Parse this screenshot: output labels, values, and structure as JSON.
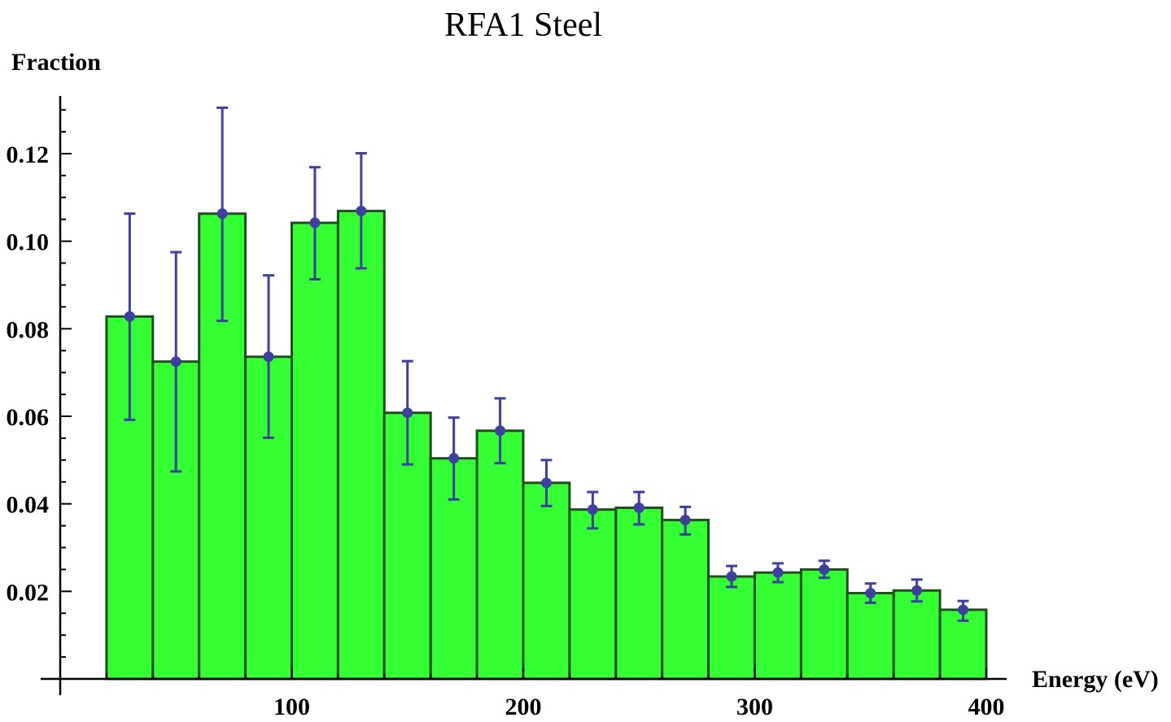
{
  "chart_data": {
    "type": "bar",
    "title": "RFA1 Steel",
    "xlabel": "Energy (eV)",
    "ylabel": "Fraction",
    "xlim": [
      0,
      400
    ],
    "ylim": [
      0,
      0.13
    ],
    "x_ticks": [
      "100",
      "200",
      "300",
      "400"
    ],
    "y_ticks": [
      "0.02",
      "0.04",
      "0.06",
      "0.08",
      "0.10",
      "0.12"
    ],
    "bin_width": 20,
    "bin_centers": [
      30,
      50,
      70,
      90,
      110,
      130,
      150,
      170,
      190,
      210,
      230,
      250,
      270,
      290,
      310,
      330,
      350,
      370,
      390
    ],
    "values": [
      0.0828,
      0.0725,
      0.1063,
      0.0736,
      0.1042,
      0.1069,
      0.0608,
      0.0504,
      0.0567,
      0.0448,
      0.0387,
      0.0391,
      0.0363,
      0.0234,
      0.0243,
      0.025,
      0.0196,
      0.0202,
      0.0158
    ],
    "error_low": [
      0.0592,
      0.0474,
      0.0818,
      0.0551,
      0.0913,
      0.0938,
      0.049,
      0.041,
      0.0493,
      0.0395,
      0.0344,
      0.0353,
      0.033,
      0.021,
      0.0221,
      0.0231,
      0.0174,
      0.0177,
      0.0133
    ],
    "error_high": [
      0.1063,
      0.0975,
      0.1305,
      0.0922,
      0.1169,
      0.1201,
      0.0726,
      0.0597,
      0.0641,
      0.05,
      0.0427,
      0.0427,
      0.0393,
      0.0258,
      0.0264,
      0.027,
      0.0218,
      0.0227,
      0.0178
    ],
    "grid": false,
    "colors": {
      "bar_fill": "#33ff33",
      "bar_edge": "#1f4d1f",
      "point": "#3f3f9f",
      "axis": "#000000"
    }
  }
}
